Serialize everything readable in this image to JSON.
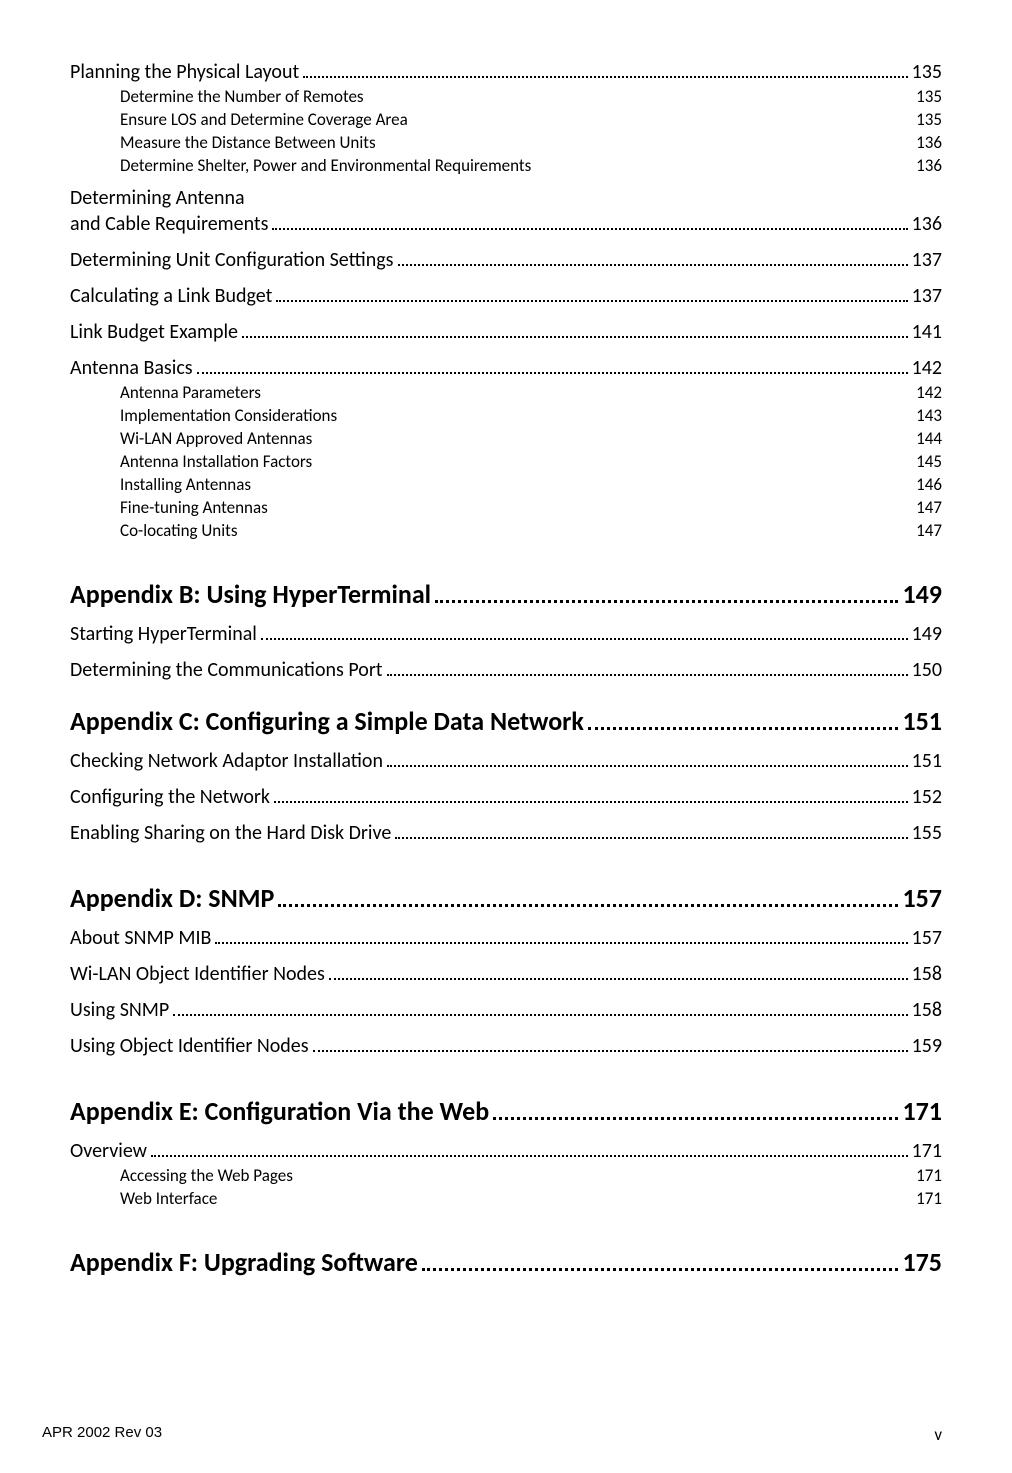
{
  "toc": {
    "sections": [
      {
        "entries": [
          {
            "level": 1,
            "leader": true,
            "label": "Planning the Physical Layout",
            "page": "135",
            "first": true
          },
          {
            "level": 2,
            "leader": false,
            "label": "Determine the Number of Remotes",
            "page": "135"
          },
          {
            "level": 2,
            "leader": false,
            "label": "Ensure LOS and Determine Coverage Area",
            "page": "135"
          },
          {
            "level": 2,
            "leader": false,
            "label": "Measure the Distance Between Units",
            "page": "136"
          },
          {
            "level": 2,
            "leader": false,
            "label": "Determine Shelter, Power and Environmental Requirements",
            "page": "136"
          },
          {
            "level": 1,
            "multiline": true,
            "label1": "Determining Antenna",
            "label2": "and Cable Requirements",
            "leader": true,
            "page": "136"
          },
          {
            "level": 1,
            "leader": true,
            "label": "Determining Unit Configuration Settings",
            "page": "137"
          },
          {
            "level": 1,
            "leader": true,
            "label": "Calculating a Link Budget",
            "page": "137"
          },
          {
            "level": 1,
            "leader": true,
            "label": "Link Budget Example",
            "page": "141"
          },
          {
            "level": 1,
            "leader": true,
            "label": "Antenna Basics",
            "page": "142"
          },
          {
            "level": 2,
            "leader": false,
            "label": "Antenna Parameters",
            "page": "142"
          },
          {
            "level": 2,
            "leader": false,
            "label": "Implementation Considerations",
            "page": "143"
          },
          {
            "level": 2,
            "leader": false,
            "label": "Wi-LAN Approved Antennas",
            "page": "144"
          },
          {
            "level": 2,
            "leader": false,
            "label": "Antenna Installation Factors",
            "page": "145"
          },
          {
            "level": 2,
            "leader": false,
            "label": "Installing Antennas",
            "page": "146"
          },
          {
            "level": 2,
            "leader": false,
            "label": "Fine-tuning Antennas",
            "page": "147"
          },
          {
            "level": 2,
            "leader": false,
            "label": "Co-locating Units",
            "page": "147"
          }
        ]
      },
      {
        "heading": {
          "label": "Appendix B: Using HyperTerminal",
          "page": "149",
          "leader": true
        },
        "entries": [
          {
            "level": 1,
            "leader": true,
            "label": "Starting HyperTerminal",
            "page": "149"
          },
          {
            "level": 1,
            "leader": true,
            "label": "Determining the Communications Port",
            "page": "150"
          }
        ]
      },
      {
        "heading": {
          "label": "Appendix C: Configuring a Simple Data Network",
          "page": "151",
          "leader": true,
          "tight": true
        },
        "entries": [
          {
            "level": 1,
            "leader": true,
            "label": "Checking Network Adaptor Installation",
            "page": "151"
          },
          {
            "level": 1,
            "leader": true,
            "label": "Configuring the Network",
            "page": "152"
          },
          {
            "level": 1,
            "leader": true,
            "label": "Enabling Sharing on the Hard Disk Drive",
            "page": "155"
          }
        ]
      },
      {
        "heading": {
          "label": "Appendix D: SNMP",
          "page": "157",
          "leader": true
        },
        "entries": [
          {
            "level": 1,
            "leader": true,
            "label": "About SNMP MIB",
            "page": "157"
          },
          {
            "level": 1,
            "leader": true,
            "label": "Wi-LAN Object Identifier Nodes",
            "page": "158"
          },
          {
            "level": 1,
            "leader": true,
            "label": "Using SNMP",
            "page": "158"
          },
          {
            "level": 1,
            "leader": true,
            "label": "Using Object Identifier Nodes",
            "page": "159"
          }
        ]
      },
      {
        "heading": {
          "label": "Appendix E: Configuration Via the Web",
          "page": "171",
          "leader": true
        },
        "entries": [
          {
            "level": 1,
            "leader": true,
            "label": "Overview",
            "page": "171"
          },
          {
            "level": 2,
            "leader": false,
            "label": "Accessing the Web Pages",
            "page": "171"
          },
          {
            "level": 2,
            "leader": false,
            "label": "Web Interface",
            "page": "171"
          }
        ]
      },
      {
        "heading": {
          "label": "Appendix F: Upgrading Software",
          "page": "175",
          "leader": true
        },
        "entries": []
      }
    ]
  },
  "footer": {
    "left": "APR 2002 Rev 03",
    "right": "v"
  }
}
